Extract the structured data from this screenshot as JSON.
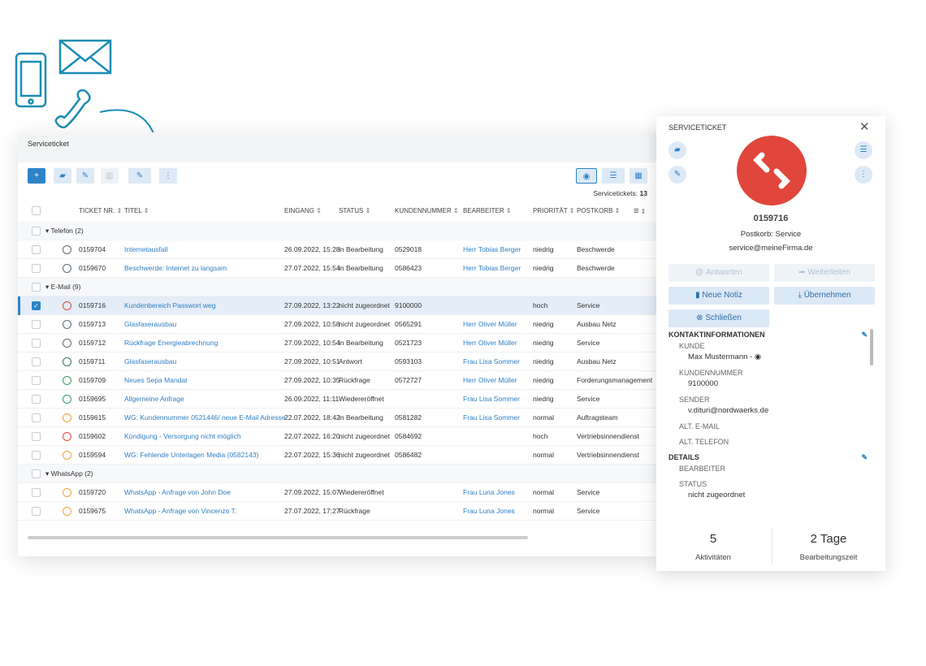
{
  "panel": {
    "title": "Serviceticket",
    "count_label": "Servicetickets:",
    "count": 13
  },
  "table": {
    "columns": [
      "TICKET NR.",
      "TITEL",
      "EINGANG",
      "STATUS",
      "KUNDENNUMMER",
      "BEARBEITER",
      "PRIORITÄT",
      "POSTKORB"
    ],
    "groups": [
      {
        "label": "Telefon (2)",
        "rows": [
          {
            "ticket": "0159704",
            "title": "Internetausfall",
            "received": "26.09.2022, 15:28",
            "status": "in Bearbeitung",
            "customer": "0529018",
            "assignee": "Herr Tobias Berger",
            "priority": "niedrig",
            "mailbox": "Beschwerde"
          },
          {
            "ticket": "0159670",
            "title": "Beschwerde: Internet zu langsam",
            "received": "27.07.2022, 15:54",
            "status": "in Bearbeitung",
            "customer": "0586423",
            "assignee": "Herr Tobias Berger",
            "priority": "niedrig",
            "mailbox": "Beschwerde"
          }
        ]
      },
      {
        "label": "E-Mail (9)",
        "rows": [
          {
            "ticket": "0159716",
            "title": "Kundenbereich Passwort weg",
            "received": "27.09.2022, 13:22",
            "status": "nicht zugeordnet",
            "customer": "9100000",
            "priority": "hoch",
            "mailbox": "Service",
            "selected": true
          },
          {
            "ticket": "0159713",
            "title": "Glasfaserausbau",
            "received": "27.09.2022, 10:58",
            "status": "nicht zugeordnet",
            "customer": "0565291",
            "assignee": "Herr Oliver Müller",
            "priority": "niedrig",
            "mailbox": "Ausbau Netz"
          },
          {
            "ticket": "0159712",
            "title": "Rückfrage Energieabrechnung",
            "received": "27.09.2022, 10:54",
            "status": "in Bearbeitung",
            "customer": "0521723",
            "assignee": "Herr Oliver Müller",
            "priority": "niedrig",
            "mailbox": "Service"
          },
          {
            "ticket": "0159711",
            "title": "Glasfaserausbau",
            "received": "27.09.2022, 10:51",
            "status": "Antwort",
            "customer": "0593103",
            "assignee": "Frau Lisa Sommer",
            "priority": "niedrig",
            "mailbox": "Ausbau Netz"
          },
          {
            "ticket": "0159709",
            "title": "Neues Sepa Mandat",
            "received": "27.09.2022, 10:35",
            "status": "Rückfrage",
            "customer": "0572727",
            "assignee": "Herr Oliver Müller",
            "priority": "niedrig",
            "mailbox": "Forderungsmanagement"
          },
          {
            "ticket": "0159695",
            "title": "Allgemeine Anfrage",
            "received": "26.09.2022, 11:11",
            "status": "Wiedereröffnet",
            "assignee": "Frau Lisa Sommer",
            "priority": "niedrig",
            "mailbox": "Service"
          },
          {
            "ticket": "0159615",
            "title": "WG: Kundennummer 0521446/ neue E-Mail Adresse",
            "received": "22.07.2022, 18:42",
            "status": "in Bearbeitung",
            "customer": "0581282",
            "assignee": "Frau Lisa Sommer",
            "priority": "normal",
            "mailbox": "Auftragsteam"
          },
          {
            "ticket": "0159602",
            "title": "Kündigung - Versorgung nicht möglich",
            "received": "22.07.2022, 16:20",
            "status": "nicht zugeordnet",
            "customer": "0584692",
            "priority": "hoch",
            "mailbox": "Vertriebsinnendienst"
          },
          {
            "ticket": "0159594",
            "title": "WG: Fehlende Unterlagen Media (0582143)",
            "received": "22.07.2022, 15:36",
            "status": "nicht zugeordnet",
            "customer": "0586482",
            "priority": "normal",
            "mailbox": "Vertriebsinnendienst"
          }
        ]
      },
      {
        "label": "WhatsApp (2)",
        "rows": [
          {
            "ticket": "0159720",
            "title": "WhatsApp - Anfrage von John Doe",
            "received": "27.09.2022, 15:07",
            "status": "Wiedereröffnet",
            "assignee": "Frau Luna Jones",
            "priority": "normal",
            "mailbox": "Service"
          },
          {
            "ticket": "0159675",
            "title": "WhatsApp - Anfrage von Vincenzo T.",
            "received": "27.07.2022, 17:27",
            "status": "Rückfrage",
            "assignee": "Frau Luna Jones",
            "priority": "normal",
            "mailbox": "Service"
          }
        ]
      }
    ]
  },
  "detail": {
    "title": "SERVICETICKET",
    "ticket": "0159716",
    "mailbox": "Postkorb: Service",
    "email": "service@meineFirma.de",
    "buttons": [
      "Antworten",
      "Weiterleiten",
      "Neue Notiz",
      "Übernehmen",
      "Schließen"
    ],
    "contact": {
      "heading": "KONTAKTINFORMATIONEN",
      "fields": [
        {
          "label": "KUNDE",
          "value": "Max Mustermann -"
        },
        {
          "label": "KUNDENNUMMER",
          "value": "9100000"
        },
        {
          "label": "SENDER",
          "value": "v.dituri@nordwaerks.de"
        },
        {
          "label": "ALT. E-MAIL"
        },
        {
          "label": "ALT. TELEFON"
        }
      ]
    },
    "details": {
      "heading": "DETAILS",
      "fields": [
        {
          "label": "BEARBEITER"
        },
        {
          "label": "STATUS",
          "value": "nicht zugeordnet"
        }
      ]
    },
    "stats": [
      {
        "value": 5,
        "label": "Aktivitäten"
      },
      {
        "value": "2 Tage",
        "label": "Bearbeitungszeit"
      }
    ]
  }
}
